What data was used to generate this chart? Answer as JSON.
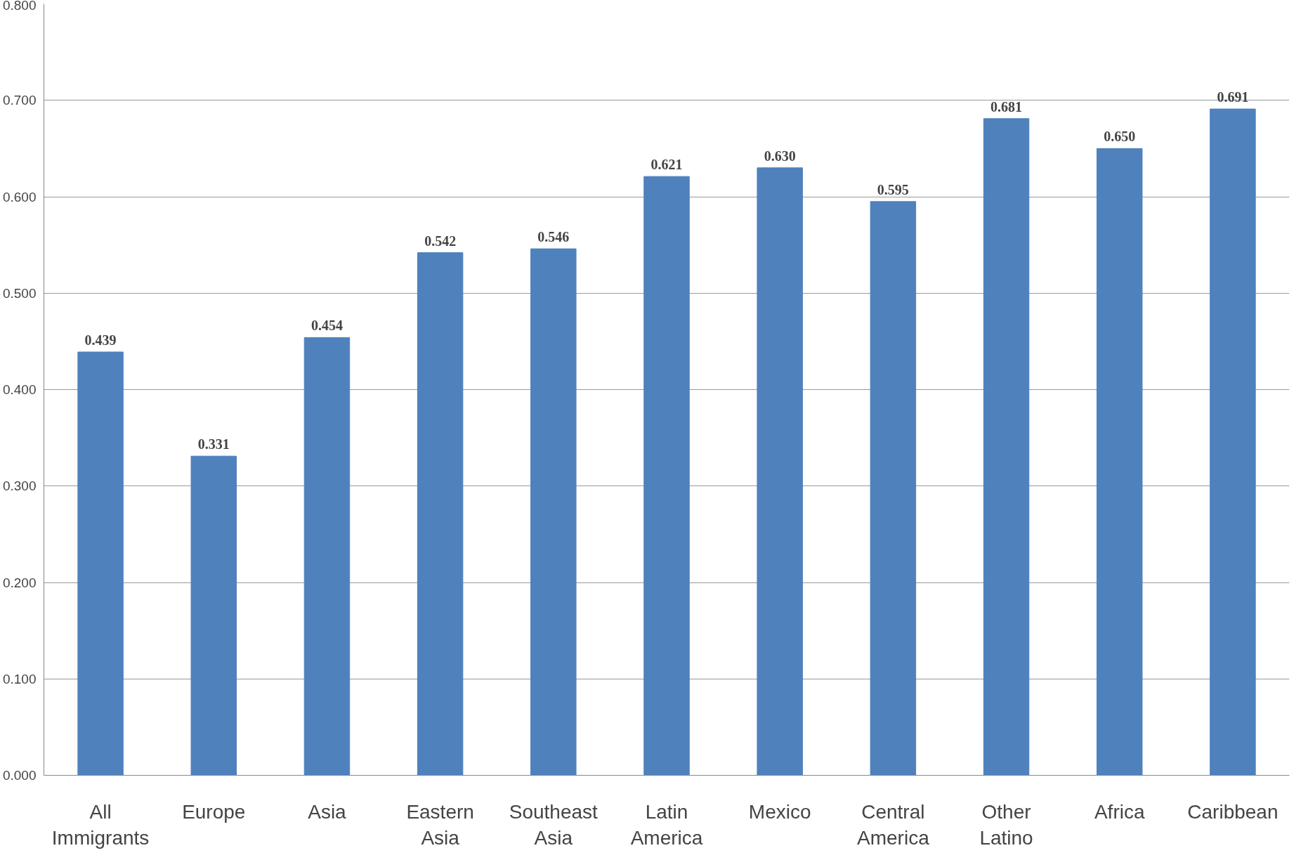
{
  "chart_data": {
    "type": "bar",
    "categories": [
      "All\nImmigrants",
      "Europe",
      "Asia",
      "Eastern\nAsia",
      "Southeast\nAsia",
      "Latin\nAmerica",
      "Mexico",
      "Central\nAmerica",
      "Other\nLatino",
      "Africa",
      "Caribbean"
    ],
    "values": [
      0.439,
      0.331,
      0.454,
      0.542,
      0.546,
      0.621,
      0.63,
      0.595,
      0.681,
      0.65,
      0.691
    ],
    "value_labels": [
      "0.439",
      "0.331",
      "0.454",
      "0.542",
      "0.546",
      "0.621",
      "0.630",
      "0.595",
      "0.681",
      "0.650",
      "0.691"
    ],
    "color": "#4f81bd",
    "ylim": [
      0,
      0.8
    ],
    "yticks": [
      {
        "value": 0,
        "label": "0.000"
      },
      {
        "value": 0.1,
        "label": "0.100"
      },
      {
        "value": 0.2,
        "label": "0.200"
      },
      {
        "value": 0.3,
        "label": "0.300"
      },
      {
        "value": 0.4,
        "label": "0.400"
      },
      {
        "value": 0.5,
        "label": "0.500"
      },
      {
        "value": 0.6,
        "label": "0.600"
      },
      {
        "value": 0.7,
        "label": "0.700"
      },
      {
        "value": 0.8,
        "label": "0.800"
      }
    ],
    "grid": "y"
  }
}
